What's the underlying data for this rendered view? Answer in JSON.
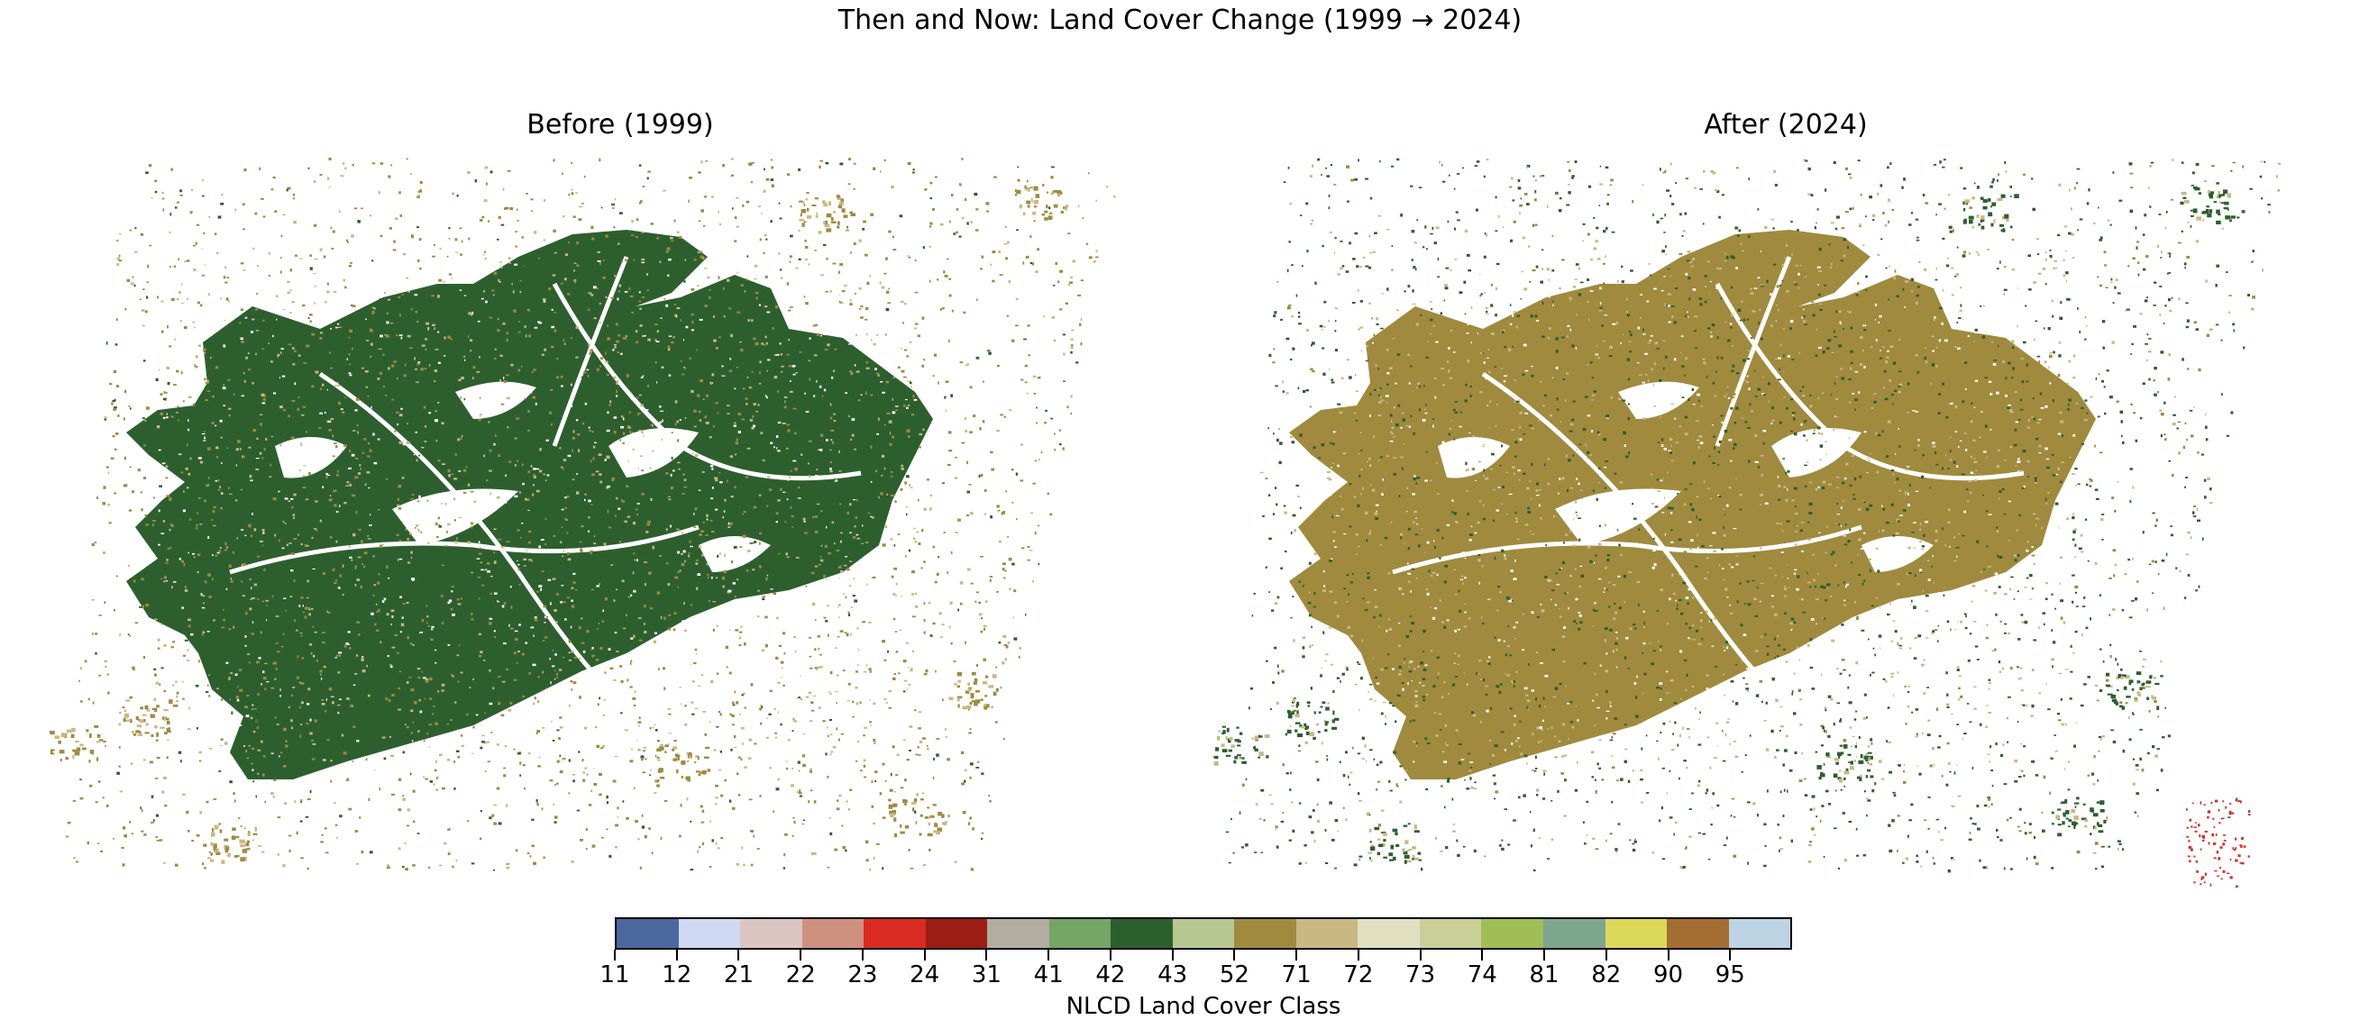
{
  "figure": {
    "title": "Then and Now: Land Cover Change (1999 → 2024)"
  },
  "panels": [
    {
      "id": "before",
      "title": "Before (1999)",
      "dominant_class": 43,
      "dominant_color": "#2d5f2e",
      "scatter_color": "#a08a3e",
      "light_scatter_color": "#c9b882"
    },
    {
      "id": "after",
      "title": "After (2024)",
      "dominant_class": 52,
      "dominant_color": "#a08a3e",
      "scatter_color": "#2d5f2e",
      "light_scatter_color": "#c9b882",
      "accent_color": "#d3342a"
    }
  ],
  "colorbar": {
    "label": "NLCD Land Cover Class",
    "classes": [
      {
        "code": "11",
        "color": "#4a679e"
      },
      {
        "code": "12",
        "color": "#d0d9f4"
      },
      {
        "code": "21",
        "color": "#dbc5c3"
      },
      {
        "code": "22",
        "color": "#cf917f"
      },
      {
        "code": "23",
        "color": "#d92b21"
      },
      {
        "code": "24",
        "color": "#9b1d14"
      },
      {
        "code": "31",
        "color": "#b3aca0"
      },
      {
        "code": "41",
        "color": "#74a565"
      },
      {
        "code": "42",
        "color": "#2c5f2e"
      },
      {
        "code": "43",
        "color": "#b8c792"
      },
      {
        "code": "52",
        "color": "#a08a3e"
      },
      {
        "code": "71",
        "color": "#c9b882"
      },
      {
        "code": "72",
        "color": "#e0e0c0"
      },
      {
        "code": "73",
        "color": "#c9d097"
      },
      {
        "code": "74",
        "color": "#a0be55"
      },
      {
        "code": "81",
        "color": "#7ea68f"
      },
      {
        "code": "82",
        "color": "#dcd85a"
      },
      {
        "code": "90",
        "color": "#a46e33"
      },
      {
        "code": "95",
        "color": "#bcd3e4"
      }
    ]
  }
}
